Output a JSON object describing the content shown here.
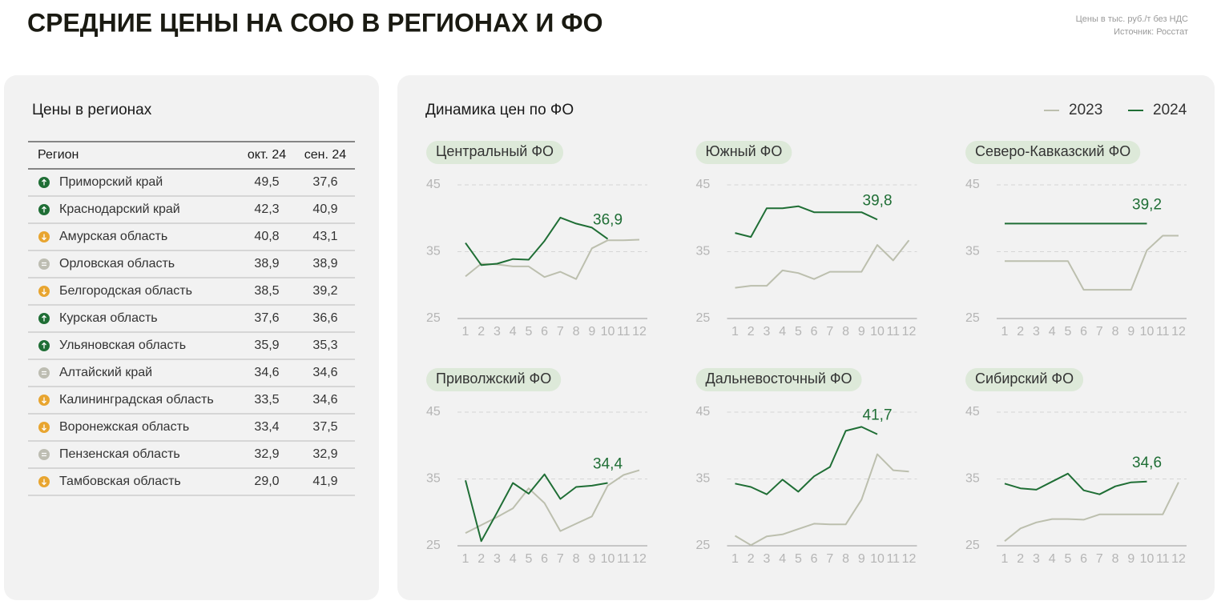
{
  "header": {
    "title": "СРЕДНИЕ ЦЕНЫ НА СОЮ В РЕГИОНАХ И ФО",
    "note": [
      "Цены в тыс. руб./т без НДС",
      "Источник: Росстат"
    ]
  },
  "table": {
    "title": "Цены в регионах",
    "columns": [
      "Регион",
      "окт. 24",
      "сен. 24"
    ],
    "rows": [
      [
        "Приморский край",
        "49,5",
        "37,6"
      ],
      [
        "Краснодарский край",
        "42,3",
        "40,9"
      ],
      [
        "Амурская область",
        "40,8",
        "43,1"
      ],
      [
        "Орловская область",
        "38,9",
        "38,9"
      ],
      [
        "Белгородская область",
        "38,5",
        "39,2"
      ],
      [
        "Курская область",
        "37,6",
        "36,6"
      ],
      [
        "Ульяновская область",
        "35,9",
        "35,3"
      ],
      [
        "Алтайский край",
        "34,6",
        "34,6"
      ],
      [
        "Калининградская область",
        "33,5",
        "34,6"
      ],
      [
        "Воронежская область",
        "33,4",
        "37,5"
      ],
      [
        "Пензенская область",
        "32,9",
        "32,9"
      ],
      [
        "Тамбовская область",
        "29,0",
        "41,9"
      ]
    ]
  },
  "charts_title": "Динамика цен по ФО",
  "chart_data": [
    {
      "type": "line",
      "title": "Центральный ФО",
      "x": [
        1,
        2,
        3,
        4,
        5,
        6,
        7,
        8,
        9,
        10,
        11,
        12
      ],
      "xlim": [
        1,
        12
      ],
      "xticks": [
        1,
        2,
        3,
        4,
        5,
        6,
        7,
        8,
        9,
        10,
        11,
        12
      ],
      "ylim": [
        25,
        45
      ],
      "yticks": [
        25,
        35,
        45
      ],
      "grid": true,
      "series": [
        {
          "name": "2023",
          "color": "#bcbfae",
          "values": [
            31.3,
            33.2,
            33.1,
            32.8,
            32.8,
            31.2,
            32.0,
            30.9,
            35.5,
            36.7,
            36.7,
            36.8
          ]
        },
        {
          "name": "2024",
          "color": "#1f6e35",
          "values": [
            36.3,
            33.0,
            33.2,
            33.9,
            33.8,
            36.6,
            40.1,
            39.2,
            38.6,
            36.9,
            null,
            null
          ],
          "value_labels": [
            null,
            null,
            null,
            null,
            null,
            null,
            null,
            null,
            null,
            "36,9",
            null,
            null
          ]
        }
      ]
    },
    {
      "type": "line",
      "title": "Южный ФО",
      "x": [
        1,
        2,
        3,
        4,
        5,
        6,
        7,
        8,
        9,
        10,
        11,
        12
      ],
      "xlim": [
        1,
        12
      ],
      "xticks": [
        1,
        2,
        3,
        4,
        5,
        6,
        7,
        8,
        9,
        10,
        11,
        12
      ],
      "ylim": [
        25,
        45
      ],
      "yticks": [
        25,
        35,
        45
      ],
      "grid": true,
      "series": [
        {
          "name": "2023",
          "color": "#bcbfae",
          "values": [
            29.6,
            29.9,
            29.9,
            32.2,
            31.8,
            30.9,
            32.0,
            32.0,
            32.0,
            36.0,
            33.7,
            36.7
          ]
        },
        {
          "name": "2024",
          "color": "#1f6e35",
          "values": [
            37.8,
            37.2,
            41.5,
            41.5,
            41.8,
            40.9,
            40.9,
            40.9,
            40.9,
            39.8,
            null,
            null
          ],
          "value_labels": [
            null,
            null,
            null,
            null,
            null,
            null,
            null,
            null,
            null,
            "39,8",
            null,
            null
          ]
        }
      ]
    },
    {
      "type": "line",
      "title": "Северо-Кавказский ФО",
      "x": [
        1,
        2,
        3,
        4,
        5,
        6,
        7,
        8,
        9,
        10,
        11,
        12
      ],
      "xlim": [
        1,
        12
      ],
      "xticks": [
        1,
        2,
        3,
        4,
        5,
        6,
        7,
        8,
        9,
        10,
        11,
        12
      ],
      "ylim": [
        25,
        45
      ],
      "yticks": [
        25,
        35,
        45
      ],
      "grid": true,
      "series": [
        {
          "name": "2023",
          "color": "#bcbfae",
          "values": [
            33.6,
            33.6,
            33.6,
            33.6,
            33.6,
            29.3,
            29.3,
            29.3,
            29.3,
            35.2,
            37.4,
            37.4
          ]
        },
        {
          "name": "2024",
          "color": "#1f6e35",
          "values": [
            39.2,
            39.2,
            39.2,
            39.2,
            39.2,
            39.2,
            39.2,
            39.2,
            39.2,
            39.2,
            null,
            null
          ],
          "value_labels": [
            null,
            null,
            null,
            null,
            null,
            null,
            null,
            null,
            null,
            "39,2",
            null,
            null
          ]
        }
      ]
    },
    {
      "type": "line",
      "title": "Приволжский ФО",
      "x": [
        1,
        2,
        3,
        4,
        5,
        6,
        7,
        8,
        9,
        10,
        11,
        12
      ],
      "xlim": [
        1,
        12
      ],
      "xticks": [
        1,
        2,
        3,
        4,
        5,
        6,
        7,
        8,
        9,
        10,
        11,
        12
      ],
      "ylim": [
        25,
        45
      ],
      "yticks": [
        25,
        35,
        45
      ],
      "grid": true,
      "series": [
        {
          "name": "2023",
          "color": "#bcbfae",
          "values": [
            26.9,
            28.1,
            29.3,
            30.6,
            33.6,
            31.4,
            27.2,
            28.3,
            29.4,
            34.0,
            35.6,
            36.3
          ]
        },
        {
          "name": "2024",
          "color": "#1f6e35",
          "values": [
            34.8,
            25.7,
            30.0,
            34.4,
            32.8,
            35.7,
            32.0,
            33.8,
            34.0,
            34.4,
            null,
            null
          ],
          "value_labels": [
            null,
            null,
            null,
            null,
            null,
            null,
            null,
            null,
            null,
            "34,4",
            null,
            null
          ]
        }
      ]
    },
    {
      "type": "line",
      "title": "Дальневосточный ФО",
      "x": [
        1,
        2,
        3,
        4,
        5,
        6,
        7,
        8,
        9,
        10,
        11,
        12
      ],
      "xlim": [
        1,
        12
      ],
      "xticks": [
        1,
        2,
        3,
        4,
        5,
        6,
        7,
        8,
        9,
        10,
        11,
        12
      ],
      "ylim": [
        25,
        45
      ],
      "yticks": [
        25,
        35,
        45
      ],
      "grid": true,
      "series": [
        {
          "name": "2023",
          "color": "#bcbfae",
          "values": [
            26.5,
            25.1,
            26.4,
            26.7,
            27.5,
            28.3,
            28.2,
            28.2,
            31.9,
            38.7,
            36.3,
            36.1
          ]
        },
        {
          "name": "2024",
          "color": "#1f6e35",
          "values": [
            34.3,
            33.8,
            32.7,
            34.9,
            33.1,
            35.4,
            36.8,
            42.2,
            42.8,
            41.7,
            null,
            null
          ],
          "value_labels": [
            null,
            null,
            null,
            null,
            null,
            null,
            null,
            null,
            null,
            "41,7",
            null,
            null
          ]
        }
      ]
    },
    {
      "type": "line",
      "title": "Сибирский ФО",
      "x": [
        1,
        2,
        3,
        4,
        5,
        6,
        7,
        8,
        9,
        10,
        11,
        12
      ],
      "xlim": [
        1,
        12
      ],
      "xticks": [
        1,
        2,
        3,
        4,
        5,
        6,
        7,
        8,
        9,
        10,
        11,
        12
      ],
      "ylim": [
        25,
        45
      ],
      "yticks": [
        25,
        35,
        45
      ],
      "grid": true,
      "series": [
        {
          "name": "2023",
          "color": "#bcbfae",
          "values": [
            25.7,
            27.6,
            28.5,
            29.0,
            29.0,
            28.9,
            29.7,
            29.7,
            29.7,
            29.7,
            29.7,
            34.5
          ]
        },
        {
          "name": "2024",
          "color": "#1f6e35",
          "values": [
            34.3,
            33.6,
            33.4,
            34.6,
            35.8,
            33.3,
            32.7,
            33.9,
            34.5,
            34.6,
            null,
            null
          ],
          "value_labels": [
            null,
            null,
            null,
            null,
            null,
            null,
            null,
            null,
            null,
            "34,6",
            null,
            null
          ]
        }
      ]
    }
  ]
}
